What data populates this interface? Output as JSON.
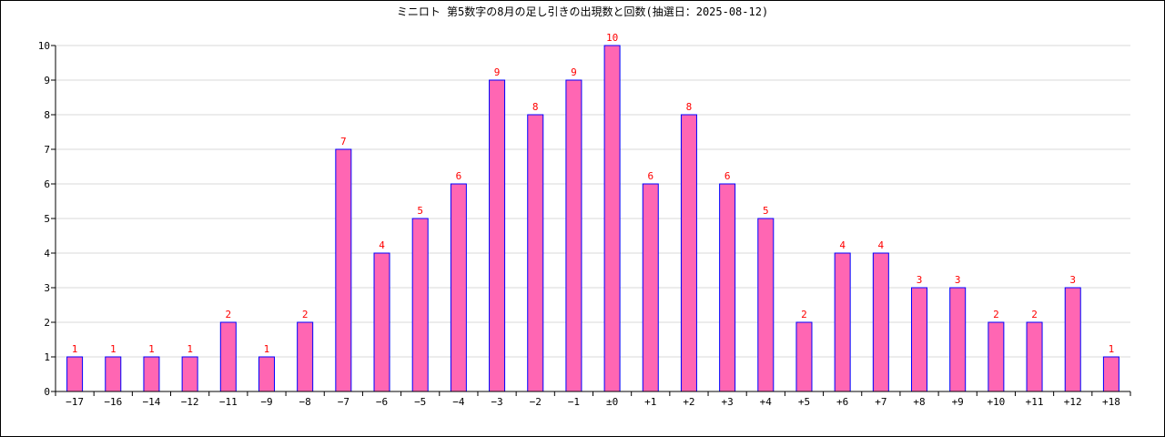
{
  "chart_data": {
    "type": "bar",
    "title": "ミニロト 第5数字の8月の足し引きの出現数と回数(抽選日：2025-08-12)",
    "categories": [
      "−17",
      "−16",
      "−14",
      "−12",
      "−11",
      "−9",
      "−8",
      "−7",
      "−6",
      "−5",
      "−4",
      "−3",
      "−2",
      "−1",
      "±0",
      "+1",
      "+2",
      "+3",
      "+4",
      "+5",
      "+6",
      "+7",
      "+8",
      "+9",
      "+10",
      "+11",
      "+12",
      "+18"
    ],
    "values": [
      1,
      1,
      1,
      1,
      2,
      1,
      2,
      7,
      4,
      5,
      6,
      9,
      8,
      9,
      10,
      6,
      8,
      6,
      5,
      2,
      4,
      4,
      3,
      3,
      2,
      2,
      3,
      1
    ],
    "ylim": [
      0,
      10
    ],
    "yticks": [
      0,
      1,
      2,
      3,
      4,
      5,
      6,
      7,
      8,
      9,
      10
    ],
    "xlabel": "",
    "ylabel": "",
    "grid": true,
    "colors": {
      "bar_fill": "#ff66b3",
      "bar_stroke": "#0000ff",
      "data_label": "#ff0000",
      "grid": "#d8d8d8",
      "axis": "#000000"
    }
  }
}
